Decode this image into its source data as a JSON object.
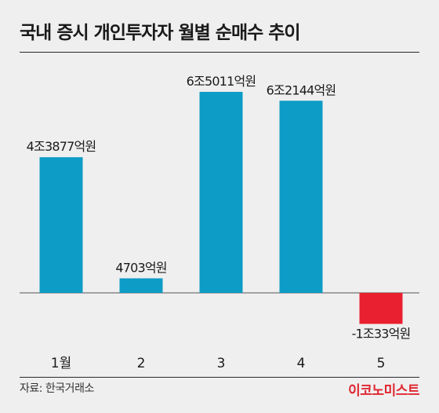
{
  "title": "국내 증시 개인투자자 월별 순매수 추이",
  "source": "자료: 한국거래소",
  "brand": "이코노미스트",
  "colors": {
    "positive": "#0d9cc6",
    "negative": "#e8202f",
    "baseline": "#555555",
    "text": "#1a1a1a"
  },
  "chart_data": {
    "type": "bar",
    "categories": [
      "1월",
      "2",
      "3",
      "4",
      "5"
    ],
    "values": [
      43877,
      4703,
      65011,
      62144,
      -10033
    ],
    "unit": "억원",
    "data_labels": [
      "4조3877억원",
      "4703억원",
      "6조5011억원",
      "6조2144억원",
      "-1조33억원"
    ],
    "ylim": [
      -12000,
      75000
    ],
    "grid": false,
    "legend": "none"
  }
}
